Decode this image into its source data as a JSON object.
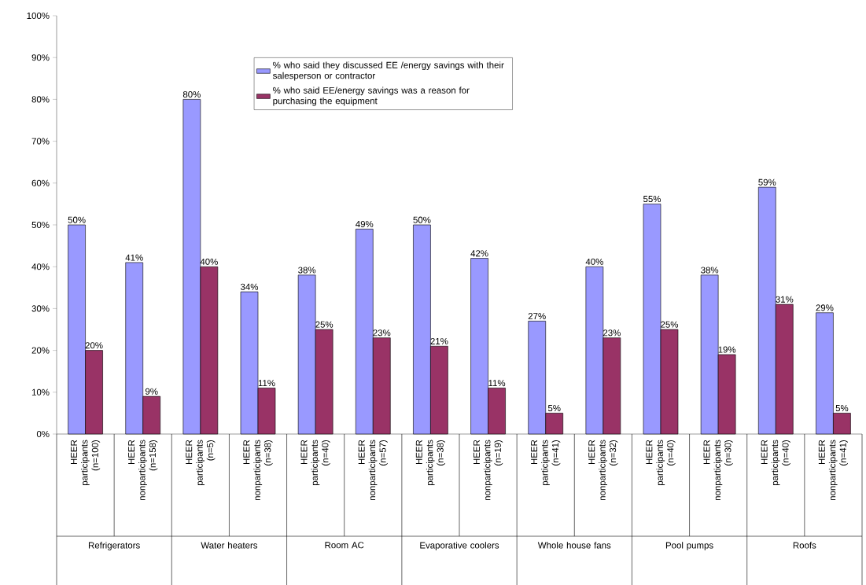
{
  "chart_data": {
    "type": "bar",
    "categories": [
      "HEER participants (n=100)",
      "HEER nonparticipants (n=158)",
      "HEER participants (n=5)",
      "HEER nonparticipants (n=38)",
      "HEER participants (n=40)",
      "HEER nonparticipants (n=57)",
      "HEER participants (n=38)",
      "HEER nonparticipants (n=19)",
      "HEER participants (n=41)",
      "HEER nonparticipants (n=32)",
      "HEER participants (n=40)",
      "HEER nonparticipants (n=30)",
      "HEER participants (n=40)",
      "HEER nonparticipants (n=41)"
    ],
    "annotations": [
      "Refrigerators",
      "Water heaters",
      "Room AC",
      "Evaporative coolers",
      "Whole house fans",
      "Pool pumps",
      "Roofs"
    ],
    "series": [
      {
        "name": "% who said they discussed EE /energy savings with their salesperson or contractor",
        "color": "#9999ff",
        "values": [
          50,
          41,
          80,
          34,
          38,
          49,
          50,
          42,
          27,
          40,
          55,
          38,
          59,
          29
        ],
        "value_labels": [
          "50%",
          "41%",
          "80%",
          "34%",
          "38%",
          "49%",
          "50%",
          "42%",
          "27%",
          "40%",
          "55%",
          "38%",
          "59%",
          "29%"
        ]
      },
      {
        "name": "% who said EE/energy savings was a reason for purchasing the equipment",
        "color": "#993366",
        "values": [
          20,
          9,
          40,
          11,
          25,
          23,
          21,
          11,
          5,
          23,
          25,
          19,
          31,
          5
        ],
        "value_labels": [
          "20%",
          "9%",
          "40%",
          "11%",
          "25%",
          "23%",
          "21%",
          "11%",
          "5%",
          "23%",
          "25%",
          "19%",
          "31%",
          "5%"
        ]
      }
    ],
    "ylim": [
      0,
      100
    ],
    "yticks": [
      {
        "value": 0,
        "label": "0%"
      },
      {
        "value": 10,
        "label": "10%"
      },
      {
        "value": 20,
        "label": "20%"
      },
      {
        "value": 30,
        "label": "30%"
      },
      {
        "value": 40,
        "label": "40%"
      },
      {
        "value": 50,
        "label": "50%"
      },
      {
        "value": 60,
        "label": "60%"
      },
      {
        "value": 70,
        "label": "70%"
      },
      {
        "value": 80,
        "label": "80%"
      },
      {
        "value": 90,
        "label": "90%"
      },
      {
        "value": 100,
        "label": "100%"
      }
    ],
    "legend": "top"
  }
}
